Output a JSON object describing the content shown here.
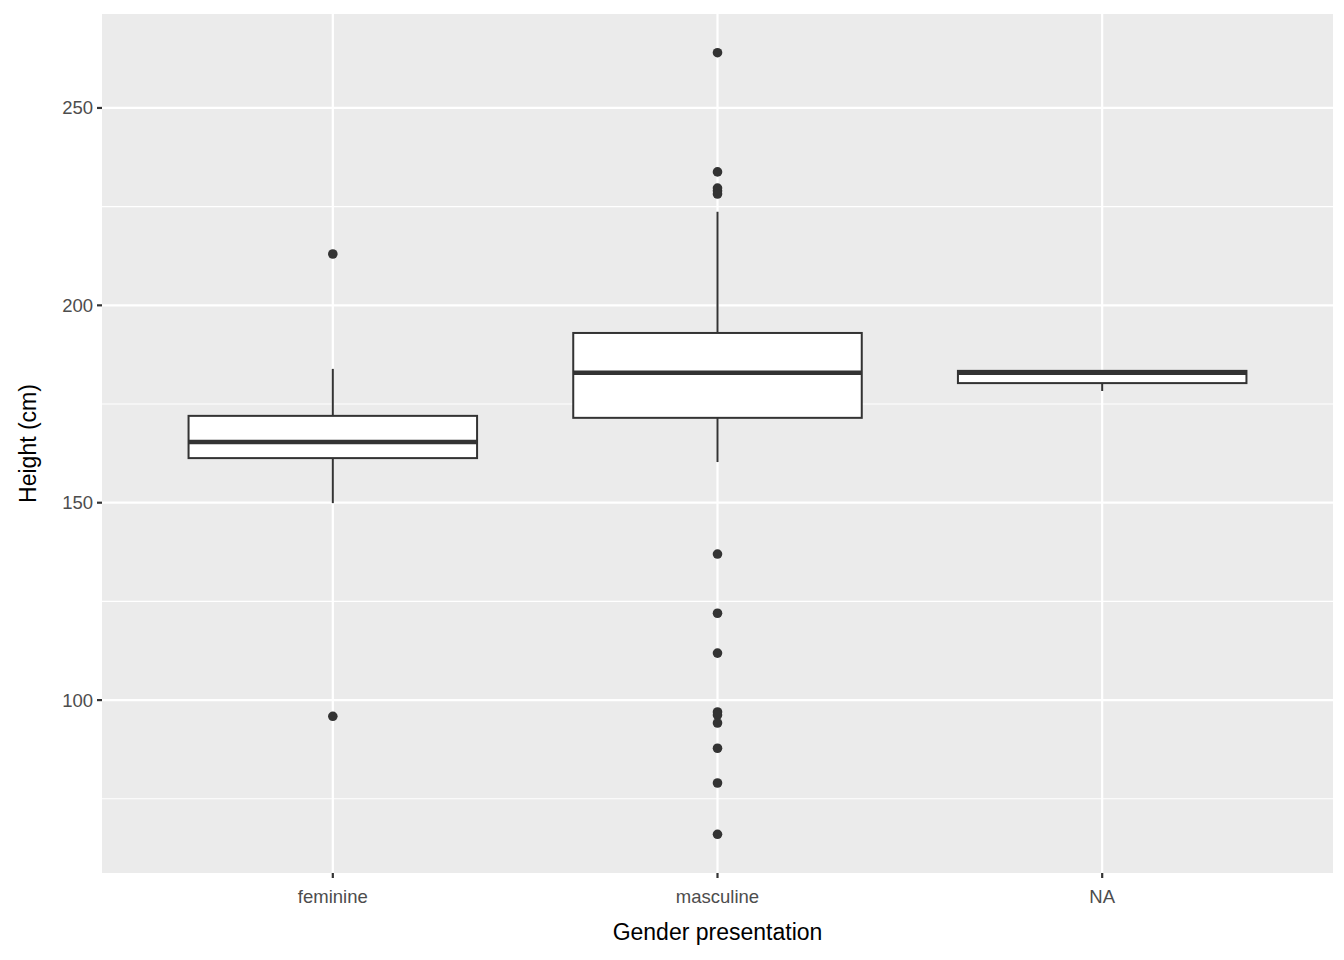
{
  "chart_data": {
    "type": "box",
    "x_label": "Gender presentation",
    "y_label": "Height (cm)",
    "categories": [
      "feminine",
      "masculine",
      "NA"
    ],
    "whisker_low": [
      149.9,
      160.3,
      178.3
    ],
    "q1": [
      161.3,
      171.5,
      180.3
    ],
    "median": [
      165.4,
      182.9,
      182.9
    ],
    "q3": [
      172.0,
      193.0,
      183.4
    ],
    "whisker_high": [
      183.9,
      223.7,
      183.4
    ],
    "outliers": [
      [
        213.0,
        95.9
      ],
      [
        264.0,
        233.8,
        229.7,
        229.0,
        228.2,
        137.0,
        122.0,
        111.9,
        97.0,
        96.2,
        94.2,
        87.8,
        79.0,
        66.0
      ],
      []
    ],
    "ylim": [
      56.2,
      273.8
    ],
    "yticks": [
      100,
      150,
      200,
      250
    ],
    "grid": true
  }
}
